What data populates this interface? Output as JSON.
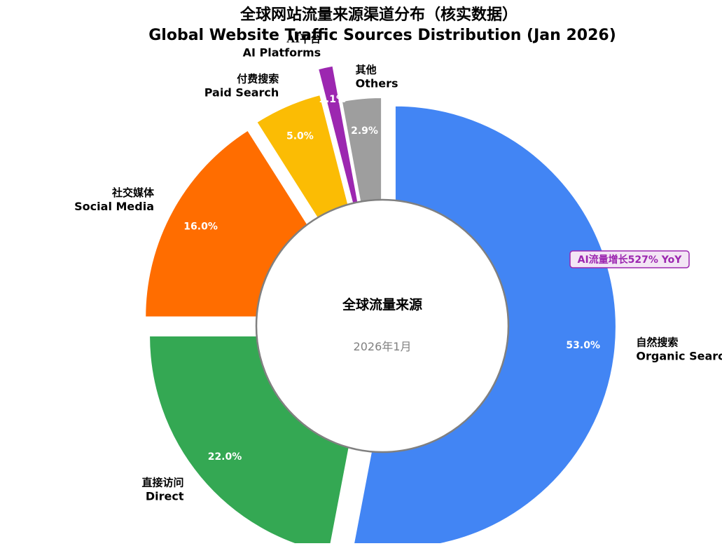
{
  "chart_data": {
    "type": "pie",
    "donut": true,
    "title": "全球网站流量来源渠道分布（核实数据）",
    "subtitle": "Global Website Traffic Sources Distribution (Jan 2026)",
    "center_title": "全球流量来源",
    "center_subtitle": "2026年1月",
    "start_angle_deg": 90,
    "direction": "clockwise",
    "slices": [
      {
        "label_zh": "自然搜索",
        "label_en": "Organic Search",
        "value": 53.0,
        "value_label": "53.0%",
        "color": "#4285F4"
      },
      {
        "label_zh": "直接访问",
        "label_en": "Direct",
        "value": 22.0,
        "value_label": "22.0%",
        "color": "#34A853"
      },
      {
        "label_zh": "社交媒体",
        "label_en": "Social Media",
        "value": 16.0,
        "value_label": "16.0%",
        "color": "#FF6D00"
      },
      {
        "label_zh": "付费搜索",
        "label_en": "Paid Search",
        "value": 5.0,
        "value_label": "5.0%",
        "color": "#FBBC04"
      },
      {
        "label_zh": "AI平台",
        "label_en": "AI Platforms",
        "value": 1.1,
        "value_label": "1.1%",
        "color": "#9C27B0"
      },
      {
        "label_zh": "其他",
        "label_en": "Others",
        "value": 2.9,
        "value_label": "2.9%",
        "color": "#9E9E9E"
      }
    ],
    "annotation": {
      "text": "AI流量增长527% YoY",
      "color": "#9C27B0"
    }
  }
}
